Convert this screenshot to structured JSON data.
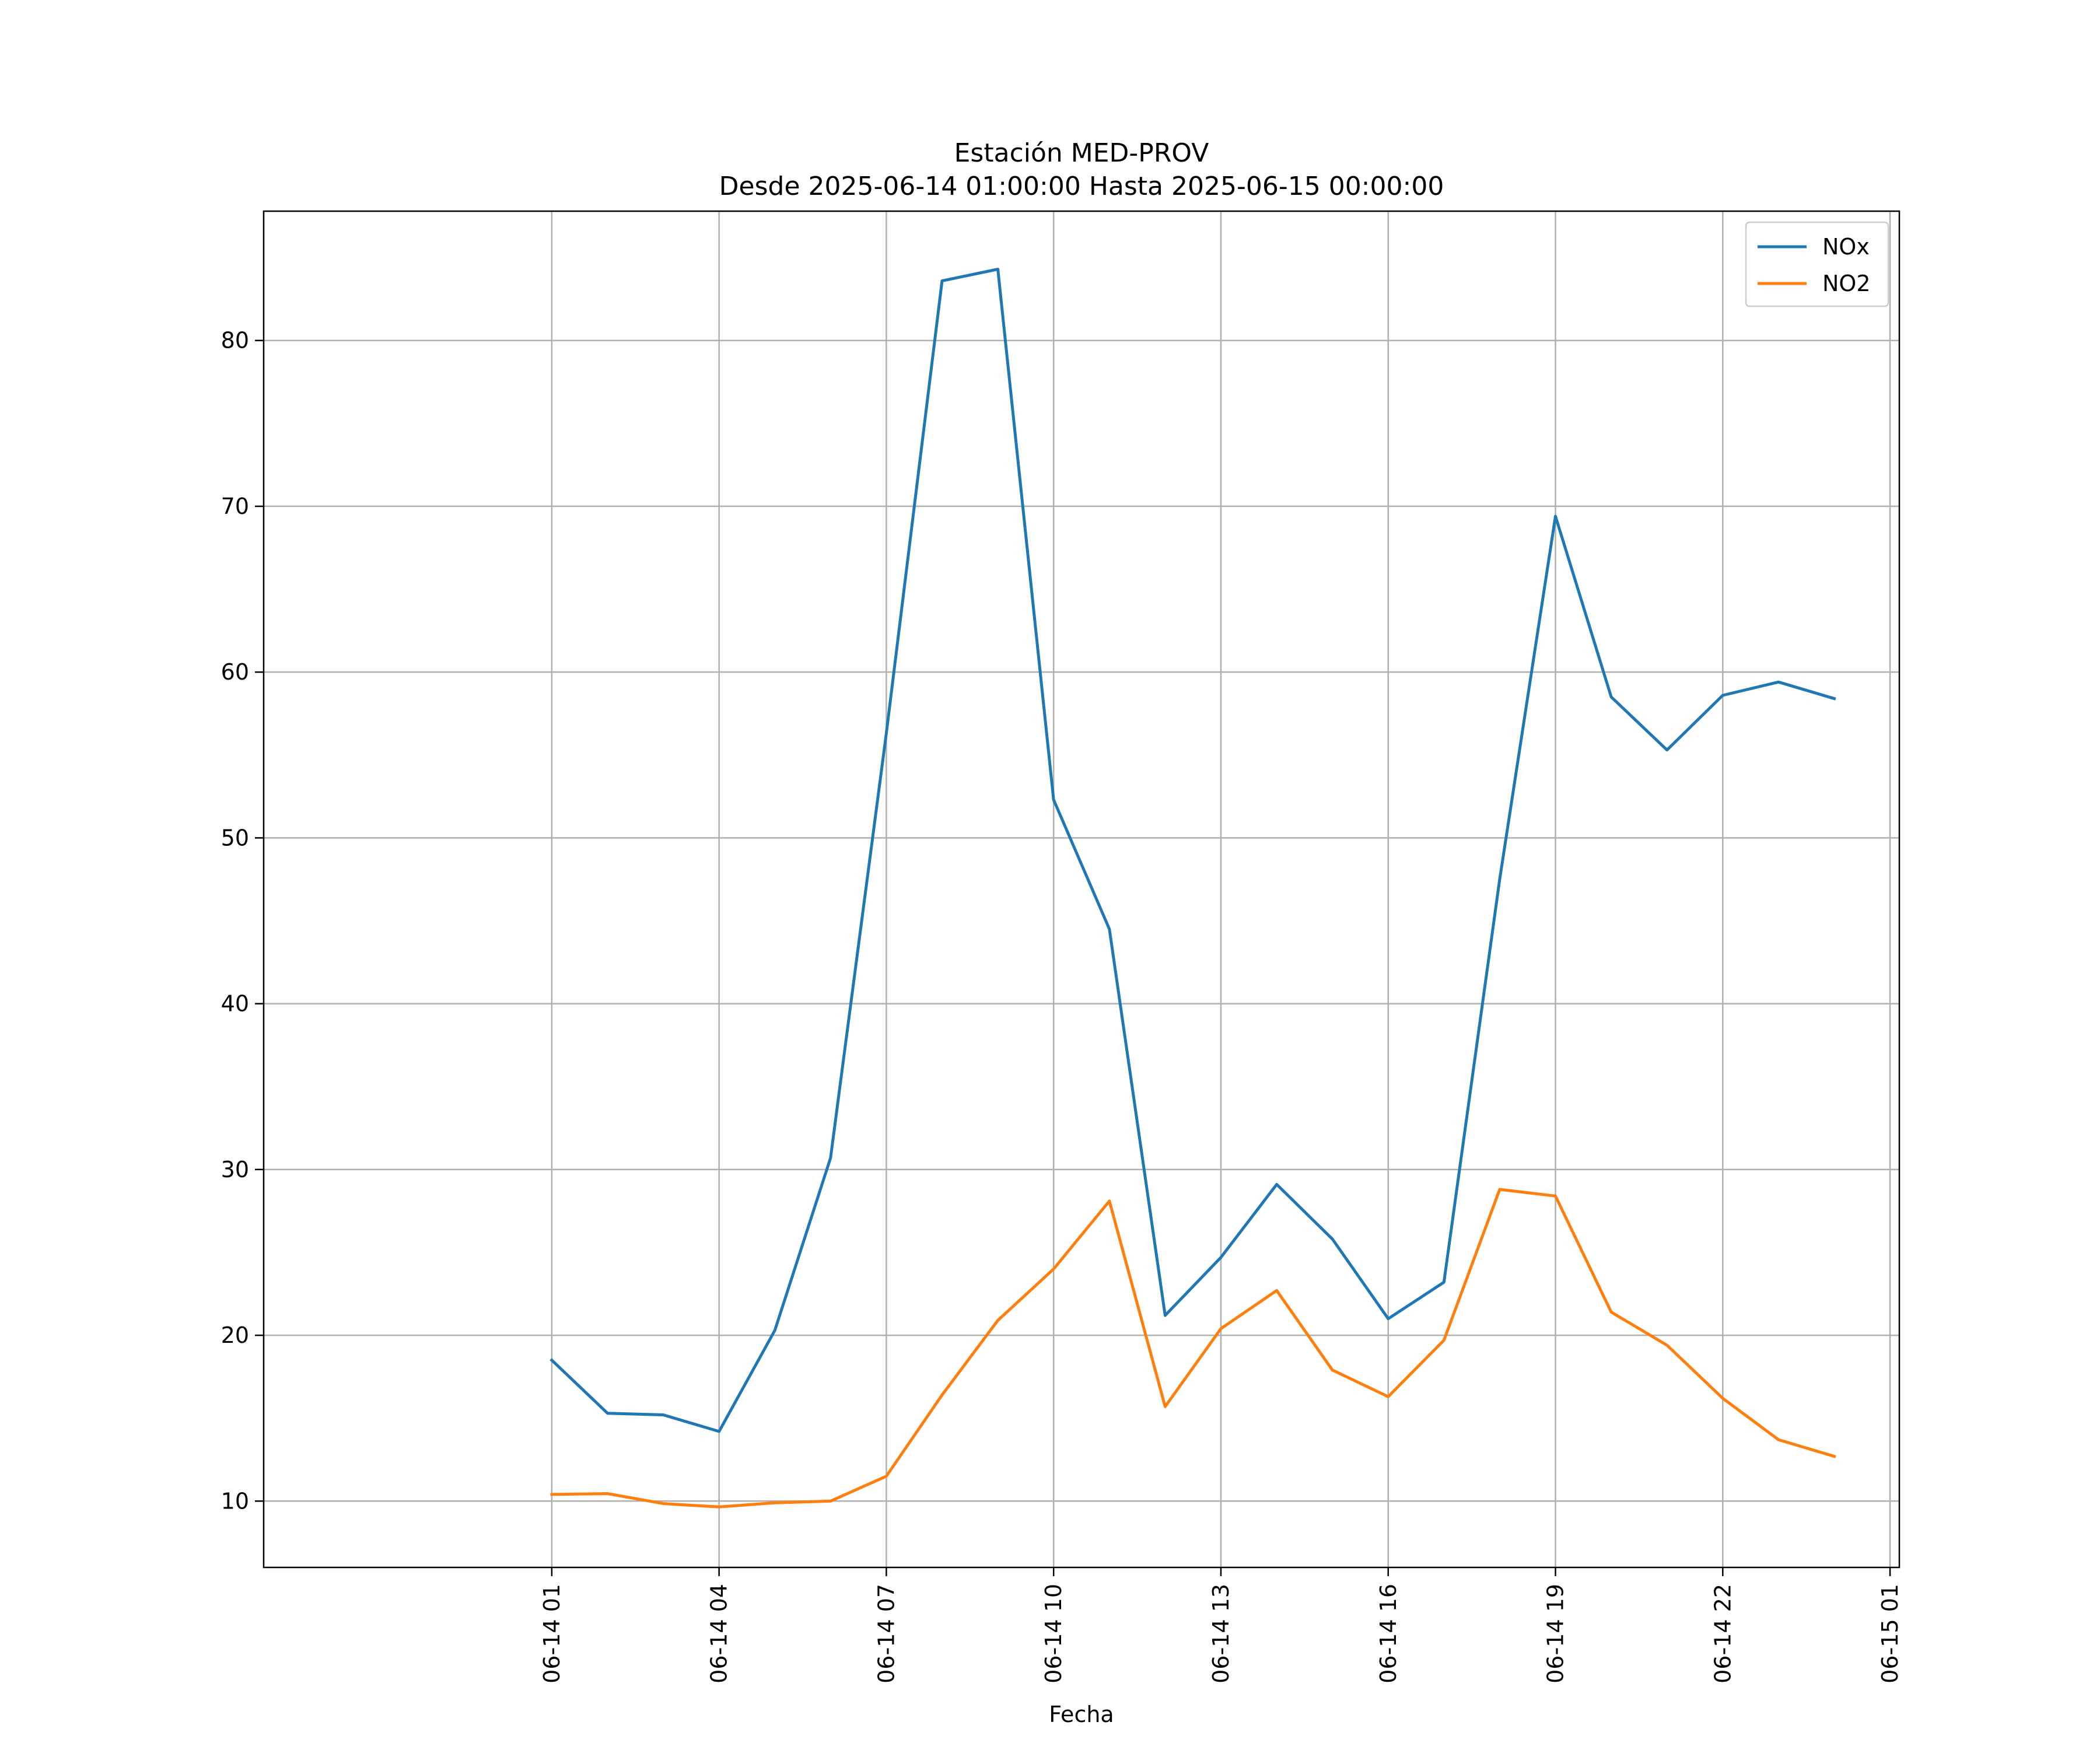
{
  "chart_data": {
    "type": "line",
    "title": "Estación MED-PROV",
    "subtitle": "Desde 2025-06-14 01:00:00 Hasta 2025-06-15 00:00:00",
    "xlabel": "Fecha",
    "ylabel": "",
    "x": [
      "2025-06-14 01:00",
      "2025-06-14 02:00",
      "2025-06-14 03:00",
      "2025-06-14 04:00",
      "2025-06-14 05:00",
      "2025-06-14 06:00",
      "2025-06-14 07:00",
      "2025-06-14 08:00",
      "2025-06-14 09:00",
      "2025-06-14 10:00",
      "2025-06-14 11:00",
      "2025-06-14 12:00",
      "2025-06-14 13:00",
      "2025-06-14 14:00",
      "2025-06-14 15:00",
      "2025-06-14 16:00",
      "2025-06-14 17:00",
      "2025-06-14 18:00",
      "2025-06-14 19:00",
      "2025-06-14 20:00",
      "2025-06-14 21:00",
      "2025-06-14 22:00",
      "2025-06-14 23:00",
      "2025-06-15 00:00"
    ],
    "series": [
      {
        "name": "NOx",
        "color": "#1f77b4",
        "values": [
          18.5,
          15.3,
          15.2,
          14.2,
          20.3,
          30.7,
          56.3,
          83.6,
          84.3,
          52.3,
          44.5,
          21.2,
          24.7,
          29.1,
          25.8,
          21.0,
          23.2,
          47.5,
          69.4,
          58.5,
          55.3,
          58.6,
          59.4,
          58.4
        ]
      },
      {
        "name": "NO2",
        "color": "#ff7f0e",
        "values": [
          10.4,
          10.45,
          9.85,
          9.65,
          9.9,
          10.0,
          11.5,
          16.4,
          20.9,
          24.0,
          28.1,
          15.7,
          20.4,
          22.7,
          17.9,
          16.3,
          19.7,
          28.8,
          28.4,
          21.4,
          19.4,
          16.2,
          13.7,
          12.7
        ]
      }
    ],
    "xticks": [
      "06-14 01",
      "06-14 04",
      "06-14 07",
      "06-14 10",
      "06-14 13",
      "06-14 16",
      "06-14 19",
      "06-14 22",
      "06-15 01"
    ],
    "yticks": [
      10,
      20,
      30,
      40,
      50,
      60,
      70,
      80
    ],
    "xlim": [
      "2025-06-13 19:50",
      "2025-06-15 01:10"
    ],
    "ylim": [
      6.0,
      87.8
    ],
    "grid": true,
    "legend_position": "upper right",
    "grid_color": "#b0b0b0",
    "axes_color": "#000000"
  }
}
